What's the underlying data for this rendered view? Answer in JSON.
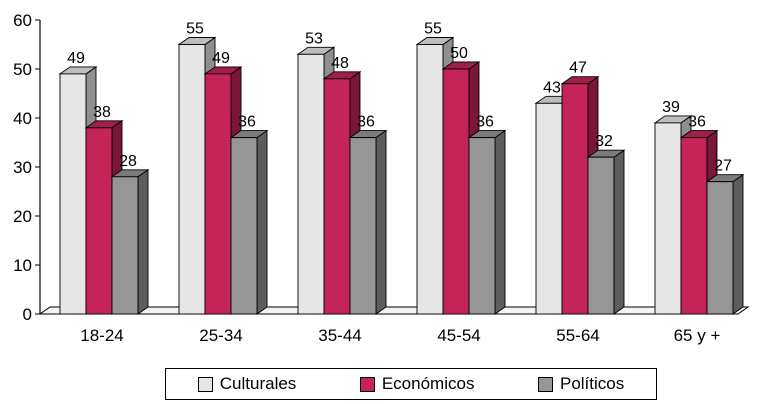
{
  "chart_data": {
    "type": "bar",
    "categories": [
      "18-24",
      "25-34",
      "35-44",
      "45-54",
      "55-64",
      "65 y +"
    ],
    "series": [
      {
        "name": "Culturales",
        "values": [
          49,
          55,
          53,
          55,
          43,
          39
        ],
        "color": "#e6e6e6"
      },
      {
        "name": "Económicos",
        "values": [
          38,
          49,
          48,
          50,
          47,
          36
        ],
        "color": "#c42458"
      },
      {
        "name": "Políticos",
        "values": [
          28,
          36,
          36,
          36,
          32,
          27
        ],
        "color": "#969696"
      }
    ],
    "title": "",
    "xlabel": "",
    "ylabel": "",
    "ylim": [
      0,
      60
    ],
    "yticks": [
      0,
      10,
      20,
      30,
      40,
      50,
      60
    ],
    "grid": false,
    "legend_position": "bottom",
    "style": "3d"
  }
}
